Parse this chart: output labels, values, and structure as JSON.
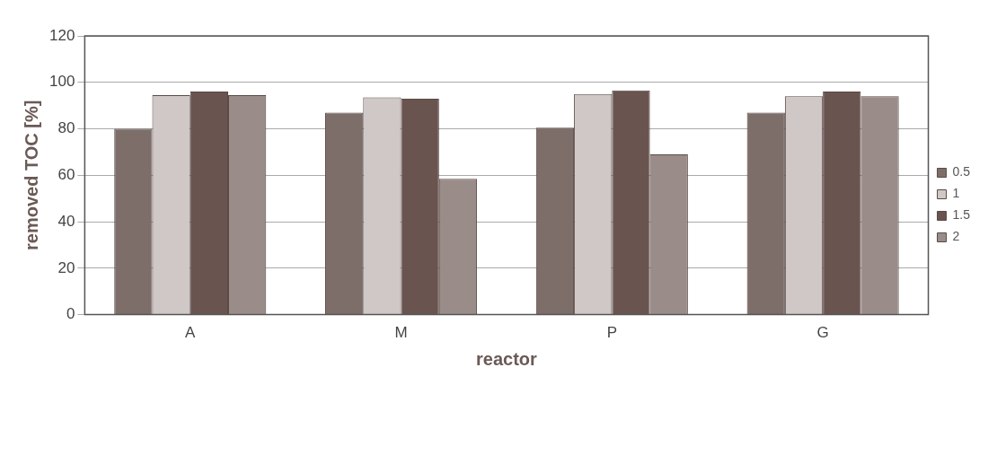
{
  "chart_data": {
    "type": "bar",
    "xlabel": "reactor",
    "ylabel": "removed TOC [%]",
    "categories": [
      "A",
      "M",
      "P",
      "G"
    ],
    "series": [
      {
        "name": "0.5",
        "color": "#7d6e6a",
        "values": [
          80,
          87,
          80.5,
          87
        ]
      },
      {
        "name": "1",
        "color": "#cfc8c6",
        "values": [
          94.5,
          93.5,
          95,
          94
        ]
      },
      {
        "name": "1.5",
        "color": "#6a544f",
        "values": [
          96,
          93,
          96.5,
          96
        ]
      },
      {
        "name": "2",
        "color": "#9a8c89",
        "values": [
          94.5,
          58.5,
          69,
          94
        ]
      }
    ],
    "ylim": [
      0,
      120
    ],
    "yticks": [
      0,
      20,
      40,
      60,
      80,
      100,
      120
    ],
    "grid": "y",
    "legend": "right"
  }
}
